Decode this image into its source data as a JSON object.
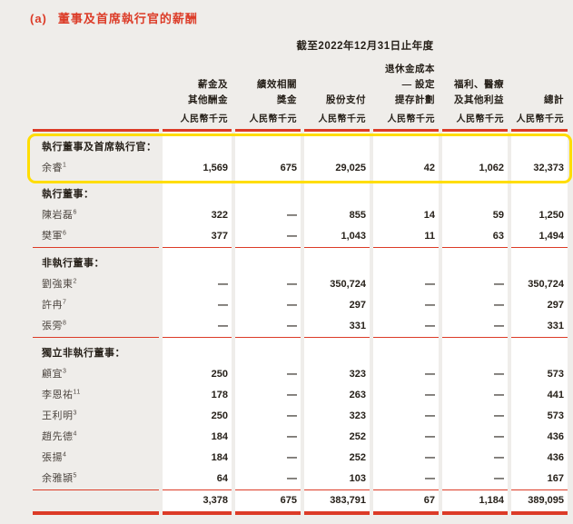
{
  "page": {
    "section_label": "(a)",
    "title": "董事及首席執行官的薪酬",
    "period_header": "截至2022年12月31日止年度"
  },
  "colors": {
    "accent_red": "#dc3b27",
    "highlight_yellow": "#ffdd00",
    "page_background": "#efedea",
    "table_background": "#ffffff"
  },
  "table": {
    "columns": [
      {
        "lines": [
          "薪金及",
          "其他酬金"
        ],
        "unit": "人民幣千元"
      },
      {
        "lines": [
          "績效相關",
          "獎金"
        ],
        "unit": "人民幣千元"
      },
      {
        "lines": [
          "股份支付"
        ],
        "unit": "人民幣千元"
      },
      {
        "lines": [
          "退休金成本",
          "— 設定",
          "提存計劃"
        ],
        "unit": "人民幣千元"
      },
      {
        "lines": [
          "福利、醫療",
          "及其他利益"
        ],
        "unit": "人民幣千元"
      },
      {
        "lines": [
          "總計"
        ],
        "unit": "人民幣千元"
      }
    ],
    "sections": [
      {
        "header": "執行董事及首席執行官：",
        "highlighted": true,
        "rule_after": false,
        "rows": [
          {
            "name": "余睿",
            "sup": "1",
            "values": [
              "1,569",
              "675",
              "29,025",
              "42",
              "1,062",
              "32,373"
            ]
          }
        ]
      },
      {
        "header": "執行董事：",
        "highlighted": false,
        "rule_after": true,
        "rows": [
          {
            "name": "陳岩磊",
            "sup": "6",
            "values": [
              "322",
              "—",
              "855",
              "14",
              "59",
              "1,250"
            ]
          },
          {
            "name": "樊軍",
            "sup": "6",
            "values": [
              "377",
              "—",
              "1,043",
              "11",
              "63",
              "1,494"
            ]
          }
        ]
      },
      {
        "header": "非執行董事：",
        "highlighted": false,
        "rule_after": true,
        "rows": [
          {
            "name": "劉強東",
            "sup": "2",
            "values": [
              "—",
              "—",
              "350,724",
              "—",
              "—",
              "350,724"
            ]
          },
          {
            "name": "許冉",
            "sup": "7",
            "values": [
              "—",
              "—",
              "297",
              "—",
              "—",
              "297"
            ]
          },
          {
            "name": "張雱",
            "sup": "8",
            "values": [
              "—",
              "—",
              "331",
              "—",
              "—",
              "331"
            ]
          }
        ]
      },
      {
        "header": "獨立非執行董事：",
        "highlighted": false,
        "rule_after": true,
        "rows": [
          {
            "name": "顧宜",
            "sup": "3",
            "values": [
              "250",
              "—",
              "323",
              "—",
              "—",
              "573"
            ]
          },
          {
            "name": "李恩祐",
            "sup": "11",
            "values": [
              "178",
              "—",
              "263",
              "—",
              "—",
              "441"
            ]
          },
          {
            "name": "王利明",
            "sup": "3",
            "values": [
              "250",
              "—",
              "323",
              "—",
              "—",
              "573"
            ]
          },
          {
            "name": "趙先德",
            "sup": "4",
            "values": [
              "184",
              "—",
              "252",
              "—",
              "—",
              "436"
            ]
          },
          {
            "name": "張揚",
            "sup": "4",
            "values": [
              "184",
              "—",
              "252",
              "—",
              "—",
              "436"
            ]
          },
          {
            "name": "余雅頴",
            "sup": "5",
            "values": [
              "64",
              "—",
              "103",
              "—",
              "—",
              "167"
            ]
          }
        ]
      }
    ],
    "total_row": {
      "values": [
        "3,378",
        "675",
        "383,791",
        "67",
        "1,184",
        "389,095"
      ]
    }
  }
}
